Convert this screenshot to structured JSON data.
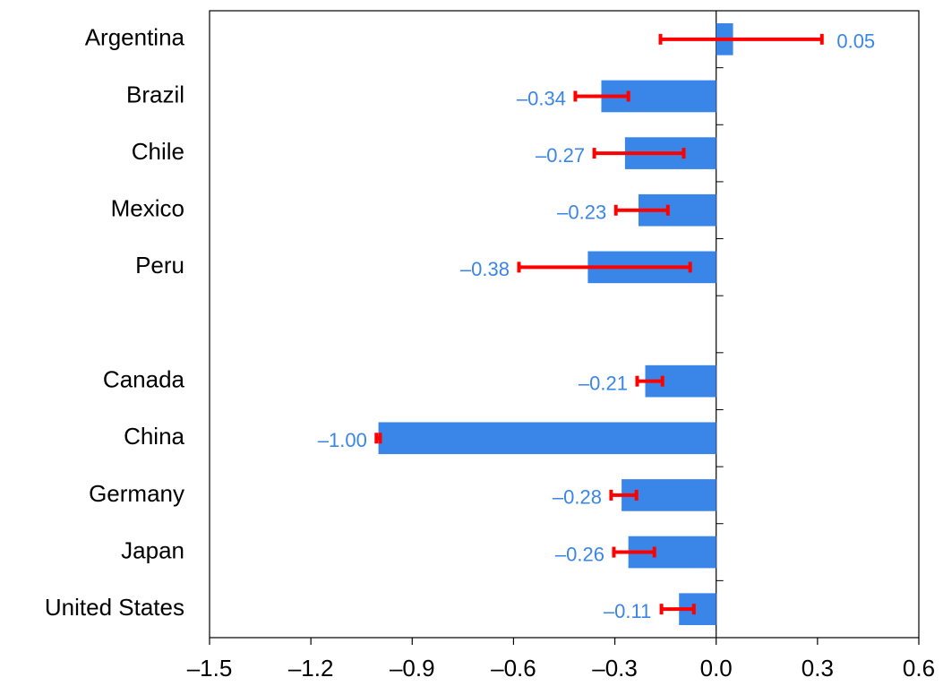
{
  "chart_data": {
    "type": "bar",
    "orientation": "horizontal",
    "categories": [
      "Argentina",
      "Brazil",
      "Chile",
      "Mexico",
      "Peru",
      null,
      "Canada",
      "China",
      "Germany",
      "Japan",
      "United States"
    ],
    "values": [
      0.05,
      -0.34,
      -0.27,
      -0.23,
      -0.38,
      null,
      -0.21,
      -1.0,
      -0.28,
      -0.26,
      -0.11
    ],
    "value_labels": [
      "0.05",
      "–0.34",
      "–0.27",
      "–0.23",
      "–0.38",
      null,
      "–0.21",
      "–1.00",
      "–0.28",
      "–0.26",
      "–0.11"
    ],
    "error_low": [
      -0.165,
      -0.417,
      -0.361,
      -0.297,
      -0.584,
      null,
      -0.234,
      -1.006,
      -0.311,
      -0.303,
      -0.162
    ],
    "error_high": [
      0.313,
      -0.26,
      -0.096,
      -0.143,
      -0.077,
      null,
      -0.159,
      -0.995,
      -0.236,
      -0.183,
      -0.066
    ],
    "color": "#3a86e8",
    "label_color": "#3a86e8",
    "error_color": "#ff0000",
    "xlim": [
      -1.5,
      0.6
    ],
    "xticks": [
      {
        "value": -1.5,
        "label": "–1.5"
      },
      {
        "value": -1.2,
        "label": "–1.2"
      },
      {
        "value": -0.9,
        "label": "–0.9"
      },
      {
        "value": -0.6,
        "label": "–0.6"
      },
      {
        "value": -0.3,
        "label": "–0.3"
      },
      {
        "value": 0,
        "label": "0.0"
      },
      0.3,
      0.6
    ],
    "grid": false
  }
}
